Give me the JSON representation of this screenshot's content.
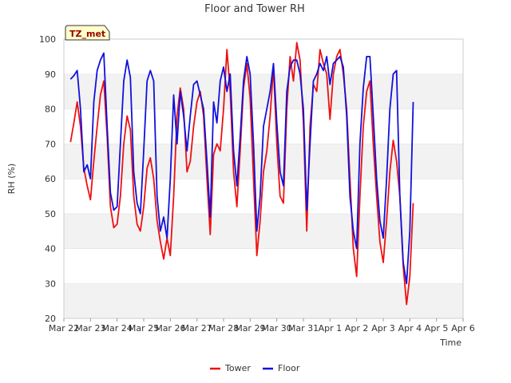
{
  "chart_data": {
    "type": "line",
    "title": "Floor and Tower RH",
    "xlabel": "Time",
    "ylabel": "RH (%)",
    "ylim": [
      20,
      100
    ],
    "yticks": [
      20,
      30,
      40,
      50,
      60,
      70,
      80,
      90,
      100
    ],
    "xlim": [
      "Mar 22",
      "Apr 6"
    ],
    "xticks": [
      "Mar 22",
      "Mar 23",
      "Mar 24",
      "Mar 25",
      "Mar 26",
      "Mar 27",
      "Mar 28",
      "Mar 29",
      "Mar 30",
      "Mar 31",
      "Apr 1",
      "Apr 2",
      "Apr 3",
      "Apr 4",
      "Apr 5",
      "Apr 6"
    ],
    "grid": "horizontal bands",
    "legend_position": "bottom-center",
    "badge": "TZ_met",
    "series": [
      {
        "name": "Tower",
        "color": "#ee1111",
        "points": [
          [
            "Mar 22 6:00",
            70.5
          ],
          [
            "Mar 22 9:00",
            76
          ],
          [
            "Mar 22 12:00",
            82
          ],
          [
            "Mar 22 15:00",
            75
          ],
          [
            "Mar 22 18:00",
            63
          ],
          [
            "Mar 22 21:00",
            58
          ],
          [
            "Mar 23 0:00",
            54
          ],
          [
            "Mar 23 3:00",
            65
          ],
          [
            "Mar 23 6:00",
            75
          ],
          [
            "Mar 23 9:00",
            84
          ],
          [
            "Mar 23 12:00",
            88
          ],
          [
            "Mar 23 15:00",
            72
          ],
          [
            "Mar 23 18:00",
            52
          ],
          [
            "Mar 23 21:00",
            46
          ],
          [
            "Mar 24 0:00",
            47
          ],
          [
            "Mar 24 3:00",
            55
          ],
          [
            "Mar 24 6:00",
            70
          ],
          [
            "Mar 24 9:00",
            78
          ],
          [
            "Mar 24 12:00",
            74
          ],
          [
            "Mar 24 15:00",
            55
          ],
          [
            "Mar 24 18:00",
            47
          ],
          [
            "Mar 24 21:00",
            45
          ],
          [
            "Mar 25 0:00",
            52
          ],
          [
            "Mar 25 3:00",
            63
          ],
          [
            "Mar 25 6:00",
            66
          ],
          [
            "Mar 25 9:00",
            60
          ],
          [
            "Mar 25 12:00",
            48
          ],
          [
            "Mar 25 15:00",
            42
          ],
          [
            "Mar 25 18:00",
            37
          ],
          [
            "Mar 25 21:00",
            43
          ],
          [
            "Mar 26 0:00",
            38
          ],
          [
            "Mar 26 3:00",
            55
          ],
          [
            "Mar 26 6:00",
            78
          ],
          [
            "Mar 26 9:00",
            86
          ],
          [
            "Mar 26 12:00",
            80
          ],
          [
            "Mar 26 15:00",
            62
          ],
          [
            "Mar 26 18:00",
            65
          ],
          [
            "Mar 26 21:00",
            75
          ],
          [
            "Mar 27 0:00",
            82
          ],
          [
            "Mar 27 3:00",
            85
          ],
          [
            "Mar 27 6:00",
            78
          ],
          [
            "Mar 27 9:00",
            60
          ],
          [
            "Mar 27 12:00",
            44
          ],
          [
            "Mar 27 15:00",
            67
          ],
          [
            "Mar 27 18:00",
            70
          ],
          [
            "Mar 27 21:00",
            68
          ],
          [
            "Mar 28 0:00",
            80
          ],
          [
            "Mar 28 3:00",
            97
          ],
          [
            "Mar 28 6:00",
            85
          ],
          [
            "Mar 28 9:00",
            62
          ],
          [
            "Mar 28 12:00",
            52
          ],
          [
            "Mar 28 15:00",
            68
          ],
          [
            "Mar 28 18:00",
            86
          ],
          [
            "Mar 28 21:00",
            93
          ],
          [
            "Mar 29 0:00",
            83
          ],
          [
            "Mar 29 3:00",
            60
          ],
          [
            "Mar 29 6:00",
            38
          ],
          [
            "Mar 29 9:00",
            48
          ],
          [
            "Mar 29 12:00",
            62
          ],
          [
            "Mar 29 15:00",
            68
          ],
          [
            "Mar 29 18:00",
            78
          ],
          [
            "Mar 29 21:00",
            92
          ],
          [
            "Mar 30 0:00",
            70
          ],
          [
            "Mar 30 3:00",
            55
          ],
          [
            "Mar 30 6:00",
            53
          ],
          [
            "Mar 30 9:00",
            80
          ],
          [
            "Mar 30 12:00",
            95
          ],
          [
            "Mar 30 15:00",
            88
          ],
          [
            "Mar 30 18:00",
            99
          ],
          [
            "Mar 30 21:00",
            94
          ],
          [
            "Mar 31 0:00",
            76
          ],
          [
            "Mar 31 3:00",
            45
          ],
          [
            "Mar 31 6:00",
            75
          ],
          [
            "Mar 31 9:00",
            87
          ],
          [
            "Mar 31 12:00",
            85
          ],
          [
            "Mar 31 15:00",
            97
          ],
          [
            "Mar 31 18:00",
            93
          ],
          [
            "Mar 31 21:00",
            90
          ],
          [
            "Apr 1 0:00",
            77
          ],
          [
            "Apr 1 3:00",
            90
          ],
          [
            "Apr 1 6:00",
            95
          ],
          [
            "Apr 1 9:00",
            97
          ],
          [
            "Apr 1 12:00",
            90
          ],
          [
            "Apr 1 15:00",
            80
          ],
          [
            "Apr 1 18:00",
            60
          ],
          [
            "Apr 1 21:00",
            40
          ],
          [
            "Apr 2 0:00",
            32
          ],
          [
            "Apr 2 3:00",
            55
          ],
          [
            "Apr 2 6:00",
            75
          ],
          [
            "Apr 2 9:00",
            85
          ],
          [
            "Apr 2 12:00",
            88
          ],
          [
            "Apr 2 15:00",
            70
          ],
          [
            "Apr 2 18:00",
            55
          ],
          [
            "Apr 2 21:00",
            42
          ],
          [
            "Apr 3 0:00",
            36
          ],
          [
            "Apr 3 3:00",
            48
          ],
          [
            "Apr 3 6:00",
            62
          ],
          [
            "Apr 3 9:00",
            71
          ],
          [
            "Apr 3 12:00",
            65
          ],
          [
            "Apr 3 15:00",
            55
          ],
          [
            "Apr 3 18:00",
            35
          ],
          [
            "Apr 3 21:00",
            24
          ],
          [
            "Apr 4 0:00",
            32
          ],
          [
            "Apr 4 3:00",
            53
          ]
        ]
      },
      {
        "name": "Floor",
        "color": "#1111dd",
        "points": [
          [
            "Mar 22 6:00",
            88.5
          ],
          [
            "Mar 22 9:00",
            89.5
          ],
          [
            "Mar 22 12:00",
            91
          ],
          [
            "Mar 22 15:00",
            80
          ],
          [
            "Mar 22 18:00",
            62
          ],
          [
            "Mar 22 21:00",
            64
          ],
          [
            "Mar 23 0:00",
            60
          ],
          [
            "Mar 23 3:00",
            82
          ],
          [
            "Mar 23 6:00",
            91
          ],
          [
            "Mar 23 9:00",
            94
          ],
          [
            "Mar 23 12:00",
            96
          ],
          [
            "Mar 23 15:00",
            75
          ],
          [
            "Mar 23 18:00",
            56
          ],
          [
            "Mar 23 21:00",
            51
          ],
          [
            "Mar 24 0:00",
            52
          ],
          [
            "Mar 24 3:00",
            70
          ],
          [
            "Mar 24 6:00",
            88
          ],
          [
            "Mar 24 9:00",
            94
          ],
          [
            "Mar 24 12:00",
            89
          ],
          [
            "Mar 24 15:00",
            62
          ],
          [
            "Mar 24 18:00",
            53
          ],
          [
            "Mar 24 21:00",
            50
          ],
          [
            "Mar 25 0:00",
            68
          ],
          [
            "Mar 25 3:00",
            88
          ],
          [
            "Mar 25 6:00",
            91
          ],
          [
            "Mar 25 9:00",
            88
          ],
          [
            "Mar 25 12:00",
            55
          ],
          [
            "Mar 25 15:00",
            45
          ],
          [
            "Mar 25 18:00",
            49
          ],
          [
            "Mar 25 21:00",
            43
          ],
          [
            "Mar 26 0:00",
            60
          ],
          [
            "Mar 26 3:00",
            84
          ],
          [
            "Mar 26 6:00",
            70
          ],
          [
            "Mar 26 9:00",
            85
          ],
          [
            "Mar 26 12:00",
            78
          ],
          [
            "Mar 26 15:00",
            68
          ],
          [
            "Mar 26 18:00",
            78
          ],
          [
            "Mar 26 21:00",
            87
          ],
          [
            "Mar 27 0:00",
            88
          ],
          [
            "Mar 27 3:00",
            84
          ],
          [
            "Mar 27 6:00",
            80
          ],
          [
            "Mar 27 9:00",
            65
          ],
          [
            "Mar 27 12:00",
            49
          ],
          [
            "Mar 27 15:00",
            82
          ],
          [
            "Mar 27 18:00",
            76
          ],
          [
            "Mar 27 21:00",
            88
          ],
          [
            "Mar 28 0:00",
            92
          ],
          [
            "Mar 28 3:00",
            85
          ],
          [
            "Mar 28 6:00",
            90
          ],
          [
            "Mar 28 9:00",
            68
          ],
          [
            "Mar 28 12:00",
            58
          ],
          [
            "Mar 28 15:00",
            72
          ],
          [
            "Mar 28 18:00",
            88
          ],
          [
            "Mar 28 21:00",
            95
          ],
          [
            "Mar 29 0:00",
            90
          ],
          [
            "Mar 29 3:00",
            70
          ],
          [
            "Mar 29 6:00",
            45
          ],
          [
            "Mar 29 9:00",
            55
          ],
          [
            "Mar 29 12:00",
            75
          ],
          [
            "Mar 29 15:00",
            80
          ],
          [
            "Mar 29 18:00",
            85
          ],
          [
            "Mar 29 21:00",
            93
          ],
          [
            "Mar 30 0:00",
            76
          ],
          [
            "Mar 30 3:00",
            62
          ],
          [
            "Mar 30 6:00",
            58
          ],
          [
            "Mar 30 9:00",
            85
          ],
          [
            "Mar 30 12:00",
            92
          ],
          [
            "Mar 30 15:00",
            94
          ],
          [
            "Mar 30 18:00",
            94
          ],
          [
            "Mar 30 21:00",
            90
          ],
          [
            "Mar 31 0:00",
            80
          ],
          [
            "Mar 31 3:00",
            51
          ],
          [
            "Mar 31 6:00",
            70
          ],
          [
            "Mar 31 9:00",
            88
          ],
          [
            "Mar 31 12:00",
            90
          ],
          [
            "Mar 31 15:00",
            93
          ],
          [
            "Mar 31 18:00",
            91
          ],
          [
            "Mar 31 21:00",
            95
          ],
          [
            "Apr 1 0:00",
            87
          ],
          [
            "Apr 1 3:00",
            93
          ],
          [
            "Apr 1 6:00",
            94
          ],
          [
            "Apr 1 9:00",
            95
          ],
          [
            "Apr 1 12:00",
            92
          ],
          [
            "Apr 1 15:00",
            78
          ],
          [
            "Apr 1 18:00",
            55
          ],
          [
            "Apr 1 21:00",
            45
          ],
          [
            "Apr 2 0:00",
            40
          ],
          [
            "Apr 2 3:00",
            70
          ],
          [
            "Apr 2 6:00",
            86
          ],
          [
            "Apr 2 9:00",
            95
          ],
          [
            "Apr 2 12:00",
            95
          ],
          [
            "Apr 2 15:00",
            78
          ],
          [
            "Apr 2 18:00",
            60
          ],
          [
            "Apr 2 21:00",
            48
          ],
          [
            "Apr 3 0:00",
            43
          ],
          [
            "Apr 3 3:00",
            60
          ],
          [
            "Apr 3 6:00",
            80
          ],
          [
            "Apr 3 9:00",
            90
          ],
          [
            "Apr 3 12:00",
            91
          ],
          [
            "Apr 3 15:00",
            55
          ],
          [
            "Apr 3 18:00",
            36
          ],
          [
            "Apr 3 21:00",
            30
          ],
          [
            "Apr 4 0:00",
            45
          ],
          [
            "Apr 4 3:00",
            82
          ]
        ]
      }
    ]
  }
}
